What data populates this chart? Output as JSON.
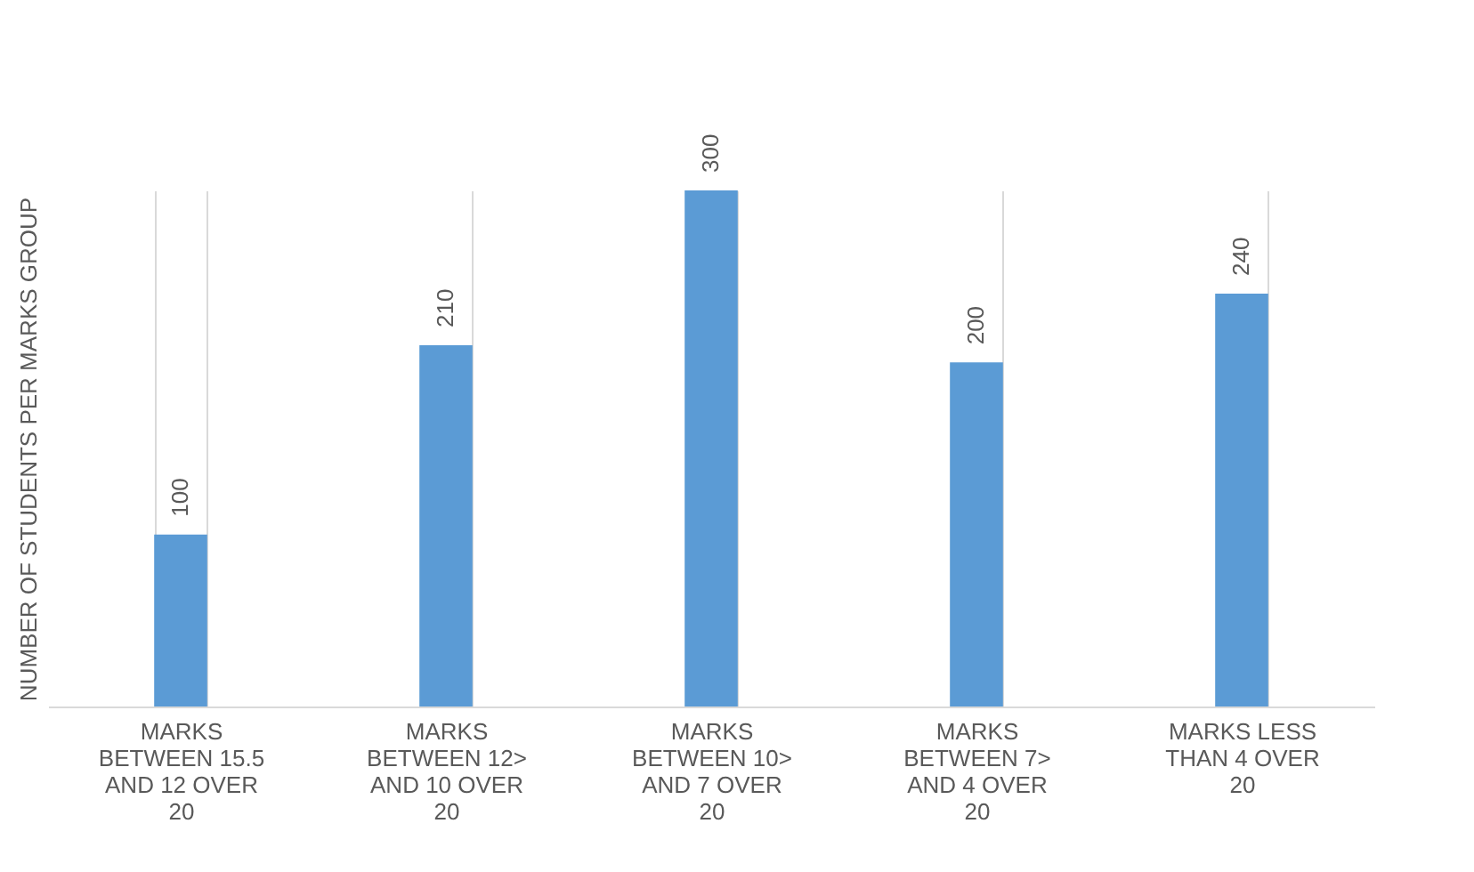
{
  "chart_data": {
    "type": "bar",
    "ylabel": "NUMBER OF STUDENTS PER MARKS GROUP",
    "categories": [
      "MARKS BETWEEN 15.5 AND 12 OVER 20",
      "MARKS BETWEEN 12> AND 10 OVER 20",
      "MARKS BETWEEN 10> AND 7 OVER 20",
      "MARKS BETWEEN 7> AND 4 OVER 20",
      "MARKS LESS THAN 4 OVER 20"
    ],
    "values": [
      100,
      210,
      300,
      200,
      240
    ],
    "color": "#5b9bd5",
    "data_labels": true,
    "grid": "x",
    "tick_labels": "x"
  }
}
